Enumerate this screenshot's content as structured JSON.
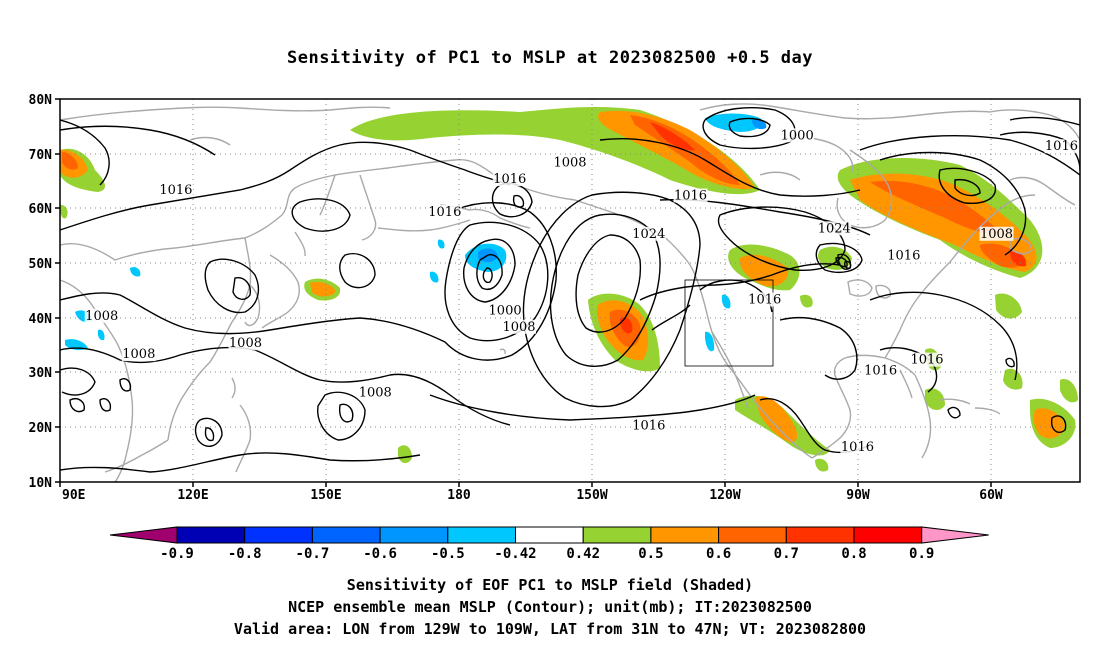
{
  "title": "Sensitivity of PC1 to MSLP at 2023082500 +0.5 day",
  "map": {
    "projection": "cylindrical equidistant",
    "lon_range": [
      "90E",
      "50W"
    ],
    "lat_range": [
      "10N",
      "80N"
    ],
    "x_ticks": [
      "90E",
      "120E",
      "150E",
      "180",
      "150W",
      "120W",
      "90W",
      "60W"
    ],
    "y_ticks": [
      "80N",
      "70N",
      "60N",
      "50N",
      "40N",
      "30N",
      "20N",
      "10N"
    ],
    "grid": "dotted",
    "coastline_color": "#a9a9a9",
    "valid_area_box": {
      "lon_w": "129W",
      "lon_e": "109W",
      "lat_s": "31N",
      "lat_n": "47N"
    }
  },
  "contour_labels": [
    {
      "text": "1016",
      "lon": 115,
      "lat": 63
    },
    {
      "text": "1016",
      "lon": 173,
      "lat": 59
    },
    {
      "text": "1016",
      "lon": -173,
      "lat": 65
    },
    {
      "text": "1008",
      "lon": -160,
      "lat": 68
    },
    {
      "text": "1016",
      "lon": -134,
      "lat": 62
    },
    {
      "text": "1024",
      "lon": -143,
      "lat": 55
    },
    {
      "text": "1024",
      "lon": -103,
      "lat": 56
    },
    {
      "text": "1000",
      "lon": -111,
      "lat": 73
    },
    {
      "text": "1016",
      "lon": -88,
      "lat": 51
    },
    {
      "text": "1008",
      "lon": -68,
      "lat": 55
    },
    {
      "text": "1016",
      "lon": -54,
      "lat": 71
    },
    {
      "text": "1016",
      "lon": -118,
      "lat": 43
    },
    {
      "text": "1008",
      "lon": 99,
      "lat": 40
    },
    {
      "text": "1008",
      "lon": 130,
      "lat": 35
    },
    {
      "text": "1008",
      "lon": 107,
      "lat": 33
    },
    {
      "text": "1000",
      "lon": -174,
      "lat": 41
    },
    {
      "text": "1008",
      "lon": -171,
      "lat": 38
    },
    {
      "text": "1008",
      "lon": 158,
      "lat": 26
    },
    {
      "text": "1016",
      "lon": -143,
      "lat": 20
    },
    {
      "text": "1016",
      "lon": -93,
      "lat": 30
    },
    {
      "text": "1016",
      "lon": -83,
      "lat": 32
    },
    {
      "text": "1016",
      "lon": -98,
      "lat": 16
    }
  ],
  "colorbar": {
    "ticks": [
      "-0.9",
      "-0.8",
      "-0.7",
      "-0.6",
      "-0.5",
      "-0.42",
      "0.42",
      "0.5",
      "0.6",
      "0.7",
      "0.8",
      "0.9"
    ],
    "colors": [
      "#a0006e",
      "#0000b4",
      "#0032ff",
      "#0064ff",
      "#0096ff",
      "#00c8ff",
      "#ffffff",
      "#96d232",
      "#ff9600",
      "#ff6400",
      "#ff3200",
      "#ff0000",
      "#ff96c8"
    ]
  },
  "caption": [
    "Sensitivity of EOF PC1 to MSLP field (Shaded)",
    "NCEP ensemble mean MSLP (Contour); unit(mb); IT:2023082500",
    "Valid area: LON from 129W to 109W, LAT from 31N to 47N; VT: 2023082800"
  ]
}
